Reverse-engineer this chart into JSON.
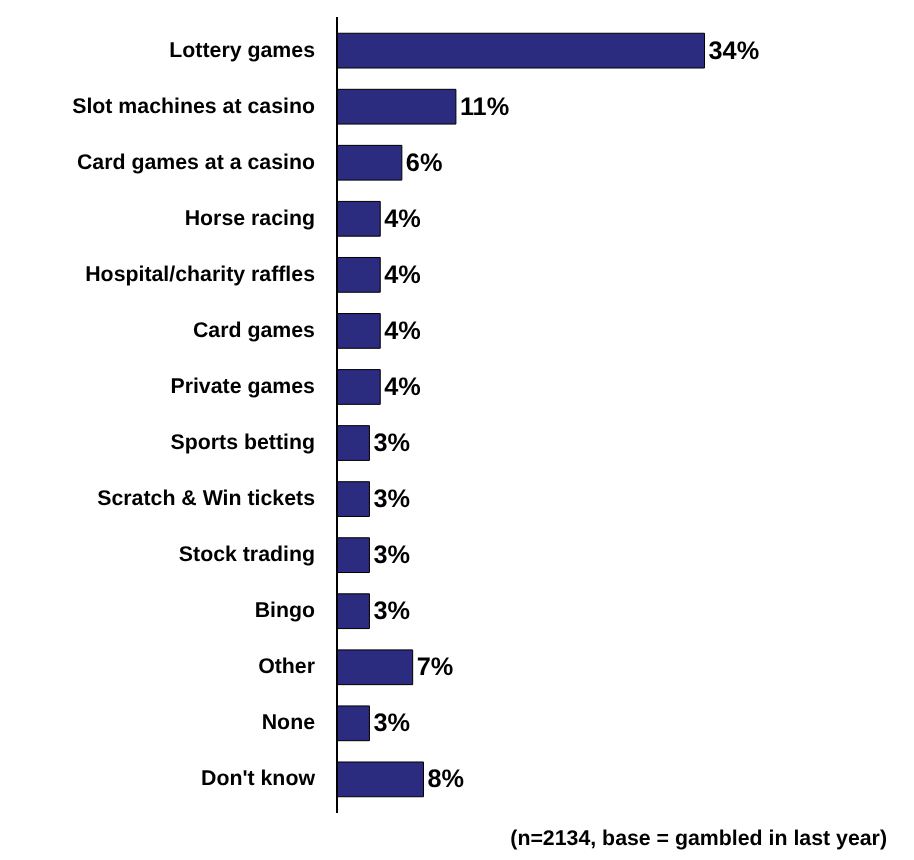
{
  "chart_data": {
    "type": "bar",
    "orientation": "horizontal",
    "categories": [
      "Lottery games",
      "Slot machines at casino",
      "Card games at a casino",
      "Horse racing",
      "Hospital/charity raffles",
      "Card games",
      "Private games",
      "Sports betting",
      "Scratch & Win tickets",
      "Stock trading",
      "Bingo",
      "Other",
      "None",
      "Don't know"
    ],
    "values": [
      34,
      11,
      6,
      4,
      4,
      4,
      4,
      3,
      3,
      3,
      3,
      7,
      3,
      8
    ],
    "value_labels": [
      "34%",
      "11%",
      "6%",
      "4%",
      "4%",
      "4%",
      "4%",
      "3%",
      "3%",
      "3%",
      "3%",
      "7%",
      "3%",
      "8%"
    ],
    "color": "#2b2b80",
    "annotations": [
      "(n=2134, base = gambled in last year)"
    ]
  }
}
